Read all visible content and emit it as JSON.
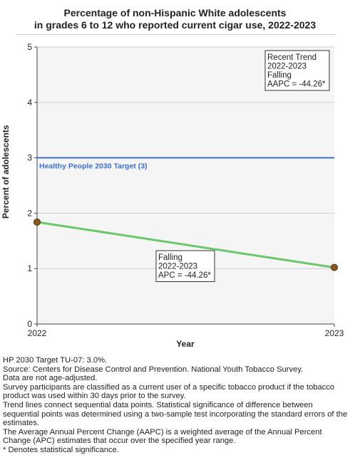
{
  "chart_data": {
    "type": "line",
    "title_line1": "Percentage of non-Hispanic White adolescents",
    "title_line2": "in grades 6 to 12 who reported current cigar use, 2022-2023",
    "xlabel": "Year",
    "ylabel": "Percent of adolescents",
    "x": [
      "2022",
      "2023"
    ],
    "ylim": [
      0,
      5
    ],
    "yticks": [
      "0",
      "1",
      "2",
      "3",
      "4",
      "5"
    ],
    "grid": true,
    "series": [
      {
        "values": [
          1.84,
          1.02
        ],
        "color": "#6cc76c",
        "marker_color": "#8b5a1e"
      }
    ],
    "target": {
      "value": 3,
      "label": "Healthy People 2030 Target (3)",
      "color": "#3f6fd8"
    },
    "annotations": {
      "segment": [
        "Falling",
        "2022-2023",
        "APC = -44.26*"
      ],
      "trend": [
        "Recent Trend",
        "2022-2023",
        "Falling",
        "AAPC = -44.26*"
      ]
    }
  },
  "notes": [
    "HP 2030 Target TU-07: 3.0%.",
    "Source: Centers for Disease Control and Prevention. National Youth Tobacco Survey.",
    "Data are not age-adjusted.",
    "Survey participants are classified as a current user of a specific tobacco product if the tobacco product was used within 30 days prior to the survey.",
    "Trend lines connect sequential data points. Statistical significance of difference between sequential points was determined using a two-sample test incorporating the standard errors of the estimates.",
    "The Average Annual Percent Change (AAPC) is a weighted average of the Annual Percent Change (APC) estimates that occur over the specified year range.",
    "* Denotes statistical significance."
  ]
}
